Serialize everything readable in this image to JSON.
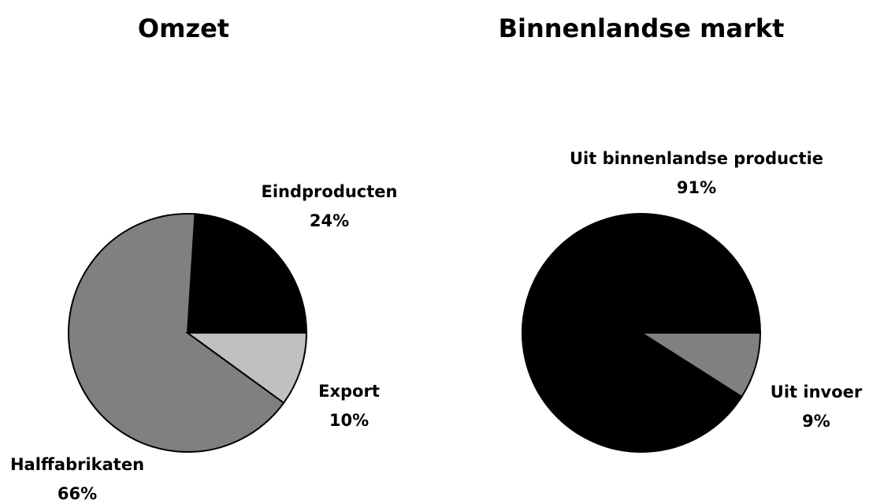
{
  "chart_data": [
    {
      "type": "pie",
      "title": "Omzet",
      "categories": [
        "Eindproducten",
        "Halffabrikaten",
        "Export"
      ],
      "values": [
        24,
        66,
        10
      ],
      "value_labels": [
        "24%",
        "66%",
        "10%"
      ],
      "colors": [
        "#000000",
        "#808080",
        "#c0c0c0"
      ]
    },
    {
      "type": "pie",
      "title": "Binnenlandse markt",
      "categories": [
        "Uit binnenlandse productie",
        "Uit invoer"
      ],
      "values": [
        91,
        9
      ],
      "value_labels": [
        "91%",
        "9%"
      ],
      "colors": [
        "#000000",
        "#808080"
      ]
    }
  ]
}
